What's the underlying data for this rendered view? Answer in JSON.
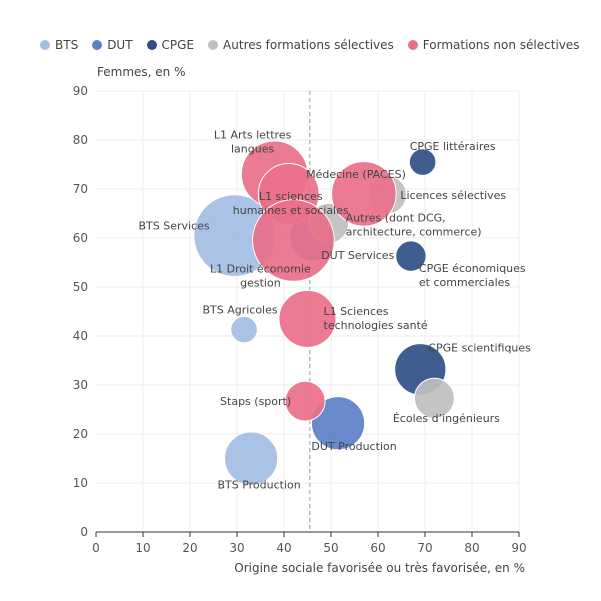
{
  "chart_data": {
    "type": "scatter",
    "xlabel": "Origine sociale favorisée ou très favorisée, en %",
    "ylabel": "Femmes, en %",
    "xlim": [
      0,
      90
    ],
    "ylim": [
      0,
      90
    ],
    "xticks": [
      0,
      10,
      20,
      30,
      40,
      50,
      60,
      70,
      80,
      90
    ],
    "yticks": [
      0,
      10,
      20,
      30,
      40,
      50,
      60,
      70,
      80,
      90
    ],
    "reference_line_x": 45.5,
    "legend": {
      "position": "top"
    },
    "series": [
      {
        "name": "BTS",
        "color": "#a3bde3",
        "points": [
          {
            "label": "BTS Services",
            "x": 29.5,
            "y": 60.5,
            "size": 4.3
          },
          {
            "label": "BTS Agricoles",
            "x": 31.5,
            "y": 41.3,
            "size": 1.4
          },
          {
            "label": "BTS Production",
            "x": 33,
            "y": 15,
            "size": 2.8
          }
        ]
      },
      {
        "name": "DUT",
        "color": "#5b80c6",
        "points": [
          {
            "label": "DUT Services",
            "x": 46,
            "y": 60,
            "size": 2.4
          },
          {
            "label": "DUT Production",
            "x": 51.5,
            "y": 22.2,
            "size": 2.8
          }
        ]
      },
      {
        "name": "CPGE",
        "color": "#2f4f86",
        "points": [
          {
            "label": "CPGE littéraires",
            "x": 69.5,
            "y": 75.5,
            "size": 1.4
          },
          {
            "label": "CPGE économiques et commerciales",
            "x": 67,
            "y": 56.3,
            "size": 1.6
          },
          {
            "label": "CPGE scientifiques",
            "x": 69,
            "y": 33.2,
            "size": 2.7
          }
        ]
      },
      {
        "name": "Autres formations sélectives",
        "color": "#bfbfbf",
        "points": [
          {
            "label": "Licences sélectives",
            "x": 62,
            "y": 68.8,
            "size": 2.0
          },
          {
            "label": "Autres (dont DCG, architecture, commerce)",
            "x": 49.5,
            "y": 63,
            "size": 2.1
          },
          {
            "label": "Écoles d'ingénieurs",
            "x": 72,
            "y": 27.3,
            "size": 2.1
          }
        ]
      },
      {
        "name": "Formations non sélectives",
        "color": "#ea6f8a",
        "points": [
          {
            "label": "L1 Arts lettres langues",
            "x": 38,
            "y": 73,
            "size": 3.5
          },
          {
            "label": "L1 Sciences humaines et sociales",
            "x": 41,
            "y": 69,
            "size": 3.2
          },
          {
            "label": "Médecine (PACES)",
            "x": 57,
            "y": 69,
            "size": 3.4
          },
          {
            "label": "L1 Droit économie gestion",
            "x": 42,
            "y": 59.5,
            "size": 4.3
          },
          {
            "label": "L1 Sciences technologies santé",
            "x": 45,
            "y": 43.5,
            "size": 3.0
          },
          {
            "label": "Staps (sport)",
            "x": 44.5,
            "y": 26.7,
            "size": 2.1
          }
        ]
      }
    ]
  },
  "point_labels": [
    {
      "target": "L1 Arts lettres langues",
      "lines": [
        "L1 Arts lettres",
        "langues"
      ],
      "anchor": "middle",
      "dx": -22,
      "dy": -36
    },
    {
      "target": "L1 Sciences humaines et sociales",
      "lines": [
        "L1 sciences",
        "humaines et sociales"
      ],
      "anchor": "middle",
      "dx": 2,
      "dy": 6
    },
    {
      "target": "Médecine (PACES)",
      "lines": [
        "Médecine (PACES)"
      ],
      "anchor": "end",
      "dx": 42,
      "dy": -16
    },
    {
      "target": "Licences sélectives",
      "lines": [
        "Licences sélectives"
      ],
      "anchor": "start",
      "dx": 13,
      "dy": 4
    },
    {
      "target": "Autres (dont DCG, architecture, commerce)",
      "lines": [
        "Autres (dont DCG,",
        "architecture, commerce)"
      ],
      "anchor": "start",
      "dx": 17,
      "dy": -2
    },
    {
      "target": "BTS Services",
      "lines": [
        "BTS Services"
      ],
      "anchor": "end",
      "dx": -25,
      "dy": -6
    },
    {
      "target": "L1 Droit économie gestion",
      "lines": [
        "L1 Droit économie",
        "gestion"
      ],
      "anchor": "middle",
      "dx": -33,
      "dy": 32
    },
    {
      "target": "DUT Services",
      "lines": [
        "DUT Services"
      ],
      "anchor": "start",
      "dx": 9,
      "dy": 21
    },
    {
      "target": "CPGE littéraires",
      "lines": [
        "CPGE littéraires"
      ],
      "anchor": "middle",
      "dx": 30,
      "dy": -12
    },
    {
      "target": "CPGE économiques et commerciales",
      "lines": [
        "CPGE économiques",
        "et commerciales"
      ],
      "anchor": "start",
      "dx": 8,
      "dy": 16
    },
    {
      "target": "BTS Agricoles",
      "lines": [
        "BTS Agricoles"
      ],
      "anchor": "middle",
      "dx": -4,
      "dy": -16
    },
    {
      "target": "L1 Sciences technologies santé",
      "lines": [
        "L1 Sciences",
        "technologies santé"
      ],
      "anchor": "start",
      "dx": 16,
      "dy": -4
    },
    {
      "target": "CPGE scientifiques",
      "lines": [
        "CPGE scientifiques"
      ],
      "anchor": "start",
      "dx": 8,
      "dy": -18
    },
    {
      "target": "Staps (sport)",
      "lines": [
        "Staps (sport)"
      ],
      "anchor": "end",
      "dx": -14,
      "dy": 4
    },
    {
      "target": "Écoles d'ingénieurs",
      "lines": [
        "Écoles d’ingénieurs"
      ],
      "anchor": "middle",
      "dx": 12,
      "dy": 24
    },
    {
      "target": "DUT Production",
      "lines": [
        "DUT Production"
      ],
      "anchor": "middle",
      "dx": 16,
      "dy": 27
    },
    {
      "target": "BTS Production",
      "lines": [
        "BTS Production"
      ],
      "anchor": "middle",
      "dx": 8,
      "dy": 30
    }
  ]
}
